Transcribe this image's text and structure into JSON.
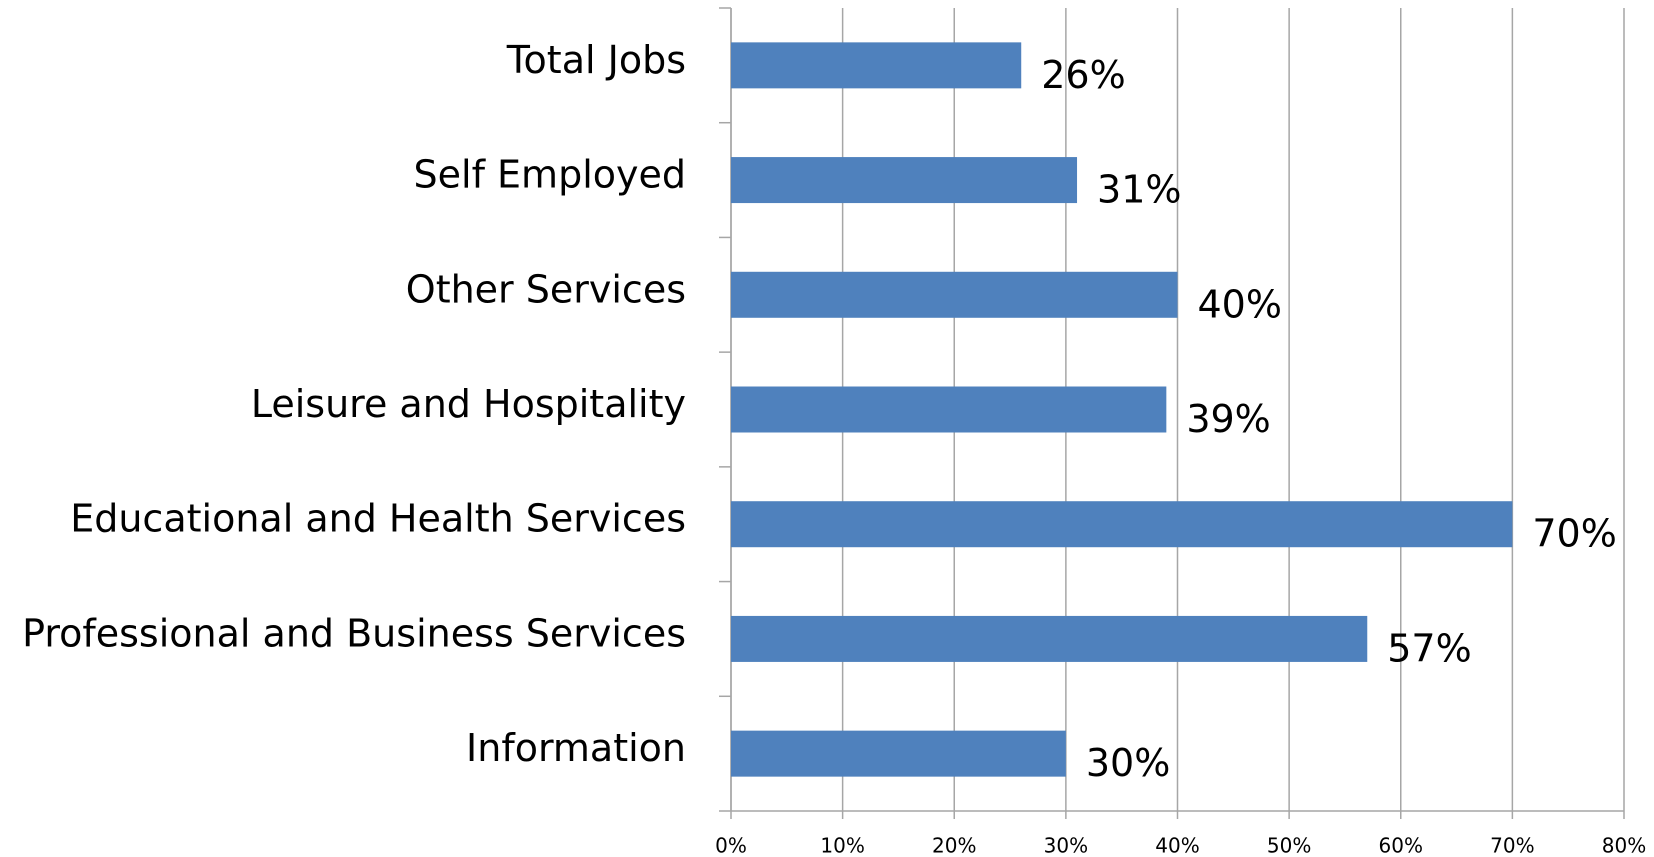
{
  "chart_data": {
    "type": "bar",
    "orientation": "horizontal",
    "categories": [
      "Total Jobs",
      "Self Employed",
      "Other Services",
      "Leisure and Hospitality",
      "Educational and Health Services",
      "Professional and Business Services",
      "Information"
    ],
    "values": [
      26,
      31,
      40,
      39,
      70,
      57,
      30
    ],
    "value_labels": [
      "26%",
      "31%",
      "40%",
      "39%",
      "70%",
      "57%",
      "30%"
    ],
    "color": "#4f81bd",
    "xlim": [
      0,
      80
    ],
    "xticks": [
      {
        "value": 0,
        "label": "0%"
      },
      {
        "value": 10,
        "label": "10%"
      },
      {
        "value": 20,
        "label": "20%"
      },
      {
        "value": 30,
        "label": "30%"
      },
      {
        "value": 40,
        "label": "40%"
      },
      {
        "value": 50,
        "label": "50%"
      },
      {
        "value": 60,
        "label": "60%"
      },
      {
        "value": 70,
        "label": "70%"
      },
      {
        "value": 80,
        "label": "80%"
      }
    ],
    "grid": true
  }
}
